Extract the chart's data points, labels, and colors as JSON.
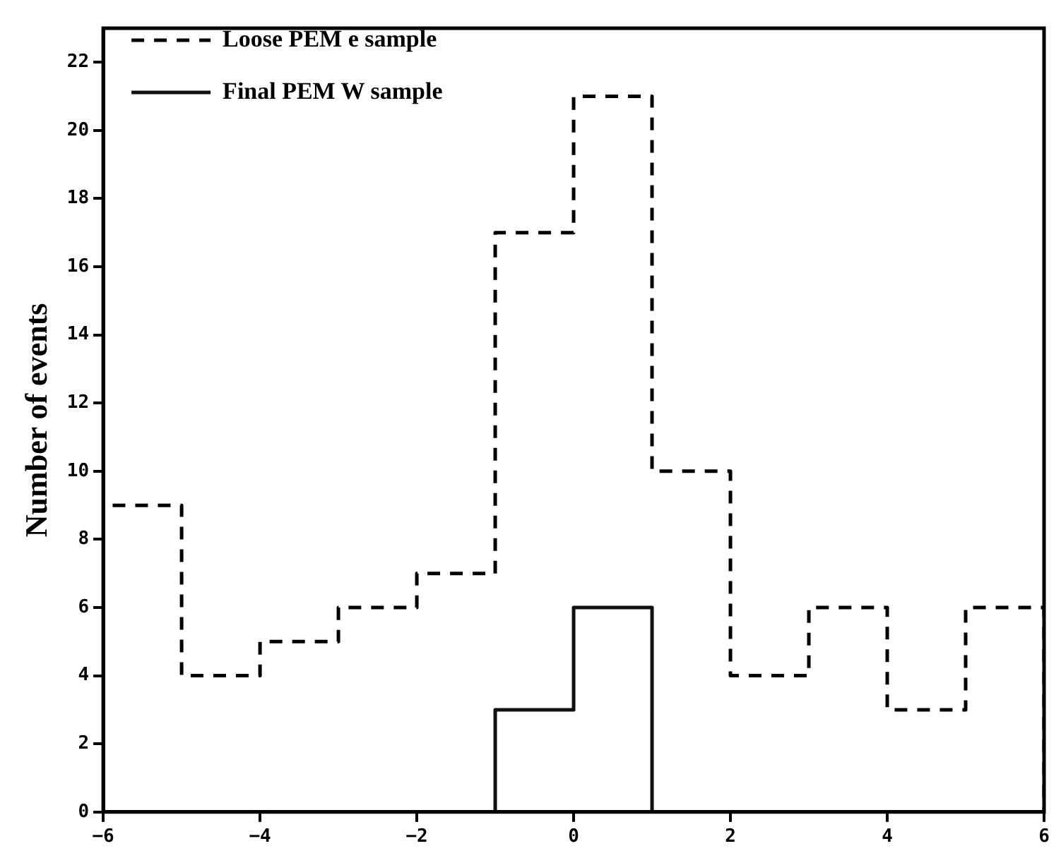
{
  "chart_data": {
    "type": "histogram",
    "ylabel": "Number of events",
    "bins": [
      -6,
      -5,
      -4,
      -3,
      -2,
      -1,
      0,
      1,
      2,
      3,
      4,
      5,
      6
    ],
    "series": [
      {
        "name": "Loose PEM e sample",
        "color": "#000000",
        "line_style": "dashed",
        "values": [
          9,
          4,
          5,
          6,
          7,
          17,
          21,
          10,
          4,
          6,
          3,
          6
        ]
      },
      {
        "name": "Final PEM W sample",
        "color": "#111111",
        "line_style": "solid",
        "values": [
          0,
          0,
          0,
          0,
          0,
          3,
          6,
          0,
          0,
          0,
          0,
          0
        ]
      }
    ],
    "xlim": [
      -6,
      6
    ],
    "xticks": [
      {
        "value": -6,
        "label": "−6"
      },
      {
        "value": -4,
        "label": "−4"
      },
      {
        "value": -2,
        "label": "−2"
      },
      0,
      2,
      4,
      6
    ],
    "ylim": [
      0,
      23
    ],
    "yticks": [
      0,
      2,
      4,
      6,
      8,
      10,
      12,
      14,
      16,
      18,
      20,
      22
    ],
    "grid": false,
    "legend": "top left"
  }
}
